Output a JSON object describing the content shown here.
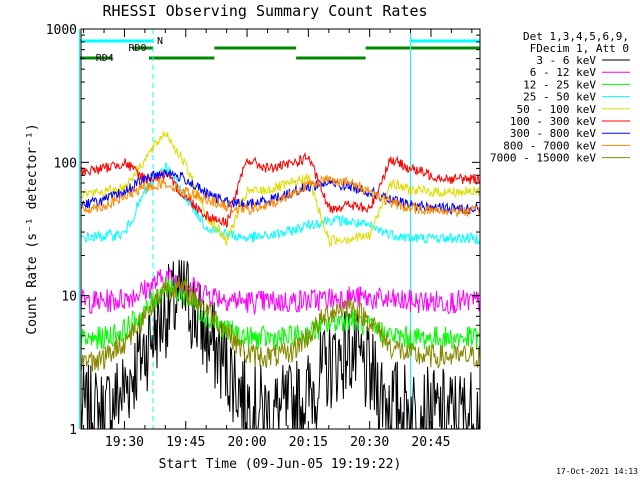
{
  "chart_data": {
    "type": "line",
    "title": "RHESSI Observing Summary Count Rates",
    "xlabel": "Start Time (09-Jun-05 19:19:22)",
    "ylabel": "Count Rate (s⁻¹ detector⁻¹)",
    "yscale": "log",
    "ylim": [
      1,
      1000
    ],
    "xlim": [
      "19:19:22",
      "20:57:00"
    ],
    "x_ticks": [
      "19:30",
      "19:45",
      "20:00",
      "20:15",
      "20:30",
      "20:45"
    ],
    "y_ticks": [
      "1",
      "10",
      "100",
      "1000"
    ],
    "timestamp": "17-Oct-2021 14:13",
    "legend_header": [
      "Det 1,3,4,5,6,9,",
      "FDecim 1, Att 0"
    ],
    "legend_position": "right",
    "time_grid": [
      "19:19",
      "19:25",
      "19:30",
      "19:35",
      "19:40",
      "19:45",
      "19:50",
      "19:55",
      "20:00",
      "20:05",
      "20:10",
      "20:15",
      "20:20",
      "20:25",
      "20:30",
      "20:35",
      "20:40",
      "20:45",
      "20:50",
      "20:55"
    ],
    "series": [
      {
        "name": "3 - 6 keV",
        "color": "#000000",
        "values": [
          1.4,
          1.3,
          2.0,
          4.0,
          7.5,
          10,
          5,
          3,
          1.6,
          1.3,
          1.4,
          1.8,
          3.0,
          4.0,
          2.5,
          1.6,
          1.4,
          1.3,
          1.3,
          1.3
        ]
      },
      {
        "name": "6 - 12 keV",
        "color": "#ff00ff",
        "values": [
          9.0,
          9.0,
          9.5,
          11,
          14,
          12,
          10.5,
          9.5,
          9.0,
          9.0,
          9.0,
          9.2,
          9.5,
          9.8,
          9.5,
          9.2,
          9.0,
          9.0,
          9.0,
          9.0
        ]
      },
      {
        "name": "12 - 25 keV",
        "color": "#00ff00",
        "values": [
          4.6,
          4.8,
          5.5,
          7.5,
          12,
          10,
          7,
          5.5,
          4.8,
          4.8,
          4.8,
          5.2,
          6.2,
          6.8,
          5.8,
          5.0,
          4.8,
          4.8,
          4.8,
          4.8
        ]
      },
      {
        "name": "25 - 50 keV",
        "color": "#00ffff",
        "values": [
          27,
          28,
          29,
          60,
          95,
          55,
          33,
          29,
          27,
          28,
          30,
          34,
          37,
          36,
          33,
          29,
          27,
          27,
          27,
          27
        ]
      },
      {
        "name": "50 - 100 keV",
        "color": "#dddd00",
        "values": [
          58,
          60,
          65,
          105,
          170,
          95,
          40,
          26,
          60,
          62,
          68,
          77,
          26,
          27,
          28,
          70,
          62,
          60,
          60,
          60
        ]
      },
      {
        "name": "100 - 300 keV",
        "color": "#ff0000",
        "values": [
          85,
          90,
          100,
          75,
          80,
          55,
          40,
          35,
          105,
          90,
          95,
          110,
          45,
          48,
          44,
          105,
          90,
          80,
          75,
          75
        ]
      },
      {
        "name": "300 - 800 keV",
        "color": "#0000ff",
        "values": [
          48,
          52,
          60,
          75,
          85,
          75,
          58,
          50,
          48,
          52,
          58,
          66,
          70,
          66,
          60,
          52,
          48,
          46,
          45,
          45
        ]
      },
      {
        "name": "800 - 7000 keV",
        "color": "#ff8800",
        "values": [
          44,
          47,
          55,
          65,
          70,
          60,
          54,
          46,
          44,
          47,
          56,
          68,
          75,
          70,
          61,
          50,
          45,
          44,
          43,
          43
        ]
      },
      {
        "name": "7000 - 15000 keV",
        "color": "#888800",
        "values": [
          3.2,
          3.4,
          4.5,
          7,
          12,
          11,
          8,
          5.5,
          3.6,
          3.5,
          3.6,
          5.0,
          7.5,
          8.5,
          6.5,
          4.2,
          3.6,
          3.5,
          3.5,
          3.5
        ]
      }
    ],
    "annotations": [
      {
        "label": "N",
        "color": "#00ffff",
        "time": "19:37"
      },
      {
        "label": "RD0",
        "color": "#008800",
        "time": "19:30"
      },
      {
        "label": "RD4",
        "color": "#008800",
        "time": "19:22"
      }
    ],
    "flag_bars": {
      "night": {
        "color": "#00ffff",
        "row": 1,
        "intervals": [
          [
            "19:19",
            "19:37"
          ],
          [
            "20:40",
            "20:57"
          ]
        ]
      },
      "rd0": {
        "color": "#008800",
        "row": 2,
        "intervals": [
          [
            "19:32",
            "19:37"
          ],
          [
            "19:52",
            "20:12"
          ],
          [
            "20:29",
            "20:57"
          ]
        ]
      },
      "rd4": {
        "color": "#008800",
        "row": 3,
        "intervals": [
          [
            "19:19",
            "19:27"
          ],
          [
            "19:36",
            "19:52"
          ],
          [
            "20:12",
            "20:29"
          ]
        ]
      }
    },
    "guide_lines": [
      {
        "time": "19:19",
        "color": "#00ffff",
        "style": "solid"
      },
      {
        "time": "19:37",
        "color": "#00ffff",
        "style": "dashed"
      },
      {
        "time": "20:40",
        "color": "#00ffff",
        "style": "solid"
      },
      {
        "time": "20:57",
        "color": "#00ffff",
        "style": "dashed"
      }
    ],
    "grid": false
  }
}
